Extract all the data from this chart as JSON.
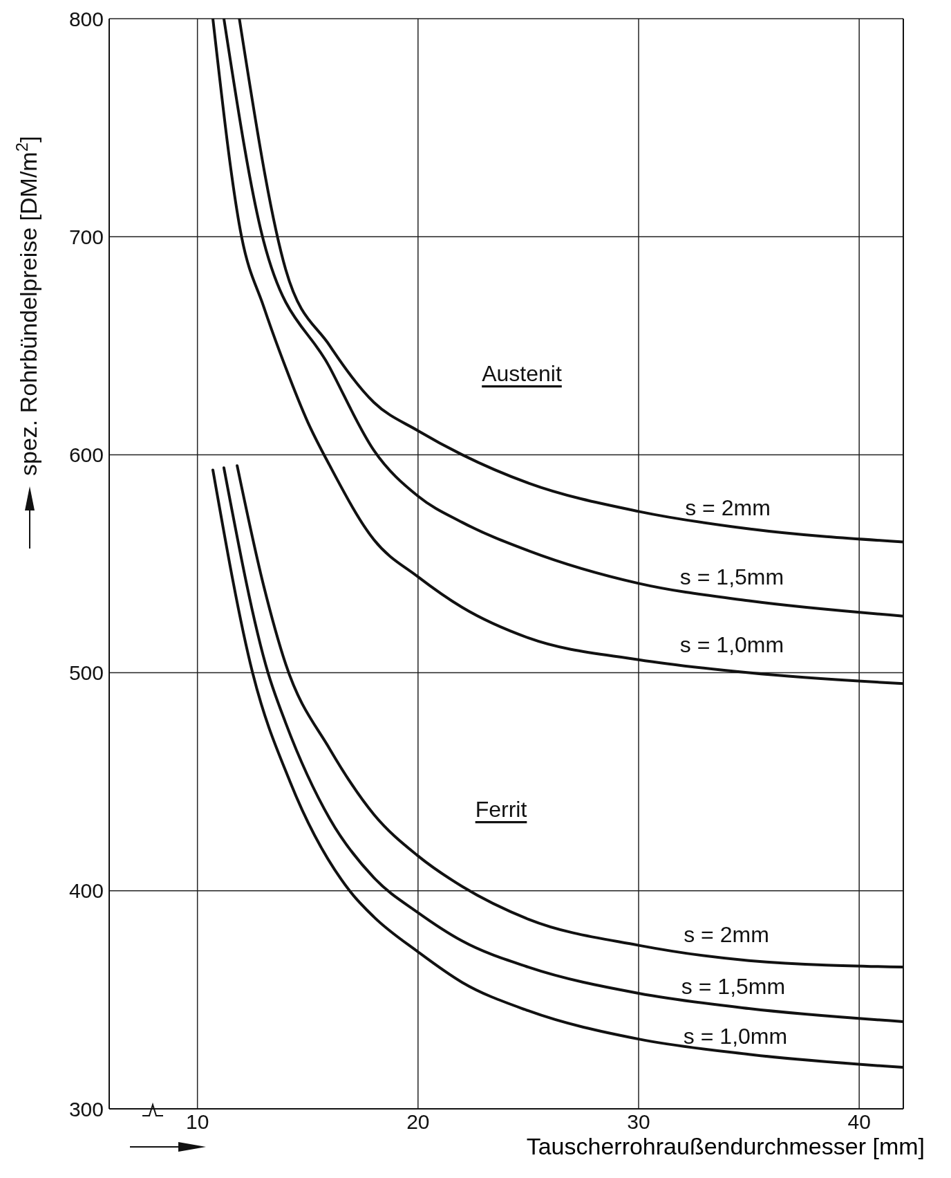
{
  "chart_data": {
    "type": "line",
    "xlabel": "Tauscherrohraußendurchmesser [mm]",
    "ylabel": "spez. Rohrbündelpreise [DM/m$^{2}$]",
    "xlim": [
      6,
      42
    ],
    "ylim": [
      300,
      800
    ],
    "xticks": [
      10,
      20,
      30,
      40
    ],
    "yticks": [
      300,
      400,
      500,
      600,
      700,
      800
    ],
    "grid": true,
    "marker": "none",
    "line_style": "solid",
    "series": [
      {
        "color": "#111111",
        "x": [
          11.9,
          14,
          16,
          18,
          20,
          22,
          25,
          30,
          35,
          42
        ],
        "values": [
          800,
          685,
          650,
          624,
          611,
          600,
          587,
          574,
          566,
          560
        ]
      },
      {
        "color": "#111111",
        "x": [
          11.2,
          13,
          16,
          18,
          20,
          22,
          25,
          30,
          35,
          42
        ],
        "values": [
          800,
          698,
          640,
          602,
          581,
          569,
          556,
          541,
          533,
          526
        ]
      },
      {
        "color": "#111111",
        "x": [
          10.7,
          12,
          13,
          14,
          15,
          16,
          18,
          20,
          22,
          25,
          30,
          35,
          42
        ],
        "values": [
          800,
          700,
          668,
          640,
          615,
          595,
          561,
          544,
          530,
          516,
          506,
          500,
          495
        ]
      },
      {
        "color": "#111111",
        "x": [
          11.8,
          13,
          14,
          16,
          18,
          20,
          22,
          25,
          30,
          35,
          42
        ],
        "values": [
          595,
          540,
          504,
          465,
          435,
          416,
          402,
          387,
          375,
          368,
          365
        ]
      },
      {
        "color": "#111111",
        "x": [
          11.2,
          13.2,
          14,
          16,
          18,
          20,
          22,
          25,
          30,
          35,
          42
        ],
        "values": [
          594,
          500,
          477,
          433,
          406,
          390,
          377,
          365,
          353,
          346,
          340
        ]
      },
      {
        "color": "#111111",
        "x": [
          10.7,
          12.5,
          14.2,
          16.9,
          18,
          20,
          22,
          25,
          30,
          35,
          42
        ],
        "values": [
          593,
          500,
          450,
          400,
          388,
          372,
          358,
          345,
          332,
          325,
          319
        ]
      }
    ],
    "annotations": [
      "Austenit",
      "s = 2mm",
      "s = 1,5mm",
      "s = 1,0mm",
      "Ferrit",
      "s = 2mm",
      "s = 1,5mm",
      "s = 1,0mm"
    ]
  }
}
